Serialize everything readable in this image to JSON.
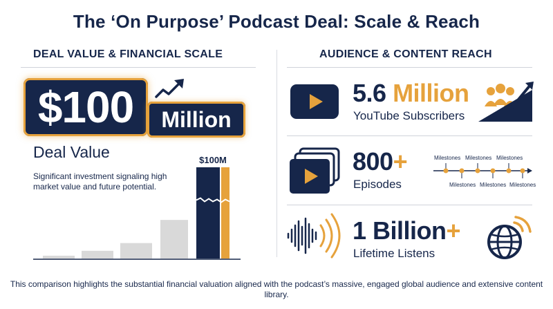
{
  "title": "The ‘On Purpose’ Podcast Deal: Scale & Reach",
  "left": {
    "heading": "DEAL VALUE & FINANCIAL SCALE",
    "badge_amount": "$100",
    "badge_unit": "Million",
    "label": "Deal Value",
    "description": "Significant investment signaling high market value and future potential."
  },
  "chart_data": {
    "type": "bar",
    "title": "",
    "xlabel": "",
    "ylabel": "",
    "categories": [
      "",
      "",
      "",
      "",
      ""
    ],
    "values": [
      4,
      11,
      22,
      55,
      130
    ],
    "bar_labels": [
      "",
      "",
      "",
      "",
      "$100M"
    ],
    "axis_break_on_last_bar": true
  },
  "right": {
    "heading": "AUDIENCE & CONTENT REACH",
    "stats": [
      {
        "number": "5.6",
        "accent": "Million",
        "label": "YouTube Subscribers",
        "icon": "youtube-play-icon",
        "side_icon": "growing-audience-icon"
      },
      {
        "number": "800",
        "accent": "+",
        "label": "Episodes",
        "icon": "stacked-video-icon",
        "side_icon": "milestones-timeline"
      },
      {
        "number": "1 Billion",
        "accent": "+",
        "label": "Lifetime Listens",
        "icon": "soundwave-icon",
        "side_icon": "globe-broadcast-icon"
      }
    ],
    "milestones": {
      "top": [
        "Milestones",
        "Milestones",
        "Milestones"
      ],
      "bottom": [
        "Milestones",
        "Milestones",
        "Milestones"
      ]
    }
  },
  "footer": "This comparison highlights the substantial financial valuation aligned with the podcast’s massive, engaged global audience and extensive content library.",
  "colors": {
    "navy": "#16264a",
    "gold": "#e6a23c",
    "gray": "#d9d9d9"
  }
}
